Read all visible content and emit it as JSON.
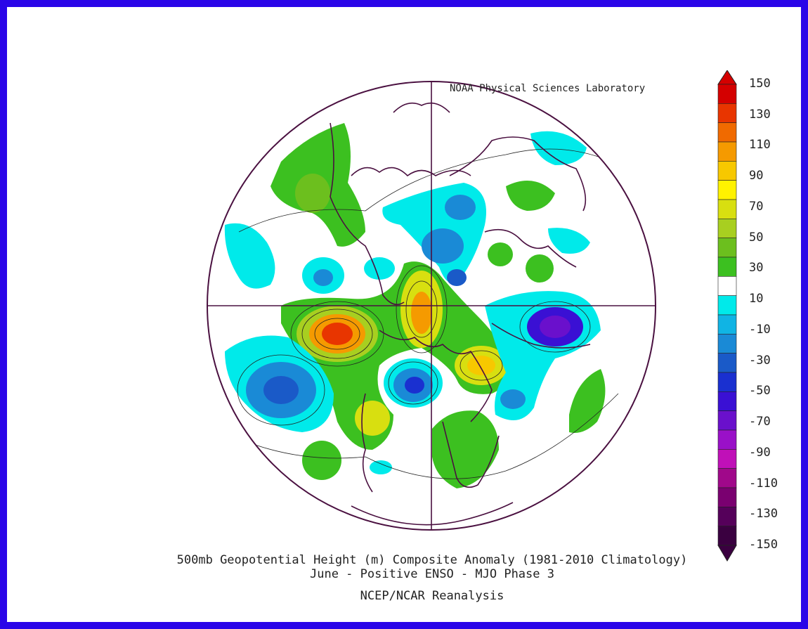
{
  "credit": "NOAA Physical Sciences Laboratory",
  "caption": {
    "line1": "500mb Geopotential Height (m) Composite Anomaly (1981-2010 Climatology)",
    "line2": "June - Positive ENSO - MJO Phase 3",
    "line3": "NCEP/NCAR Reanalysis"
  },
  "colorbar": {
    "labels": [
      "150",
      "130",
      "110",
      "90",
      "70",
      "50",
      "30",
      "10",
      "-10",
      "-30",
      "-50",
      "-70",
      "-90",
      "-110",
      "-130",
      "-150"
    ],
    "colors": [
      "#d40000",
      "#e83500",
      "#f06a00",
      "#f59a00",
      "#f7c800",
      "#fff200",
      "#d8df10",
      "#a8cf20",
      "#6cbf1e",
      "#3cc020",
      "#ffffff",
      "#00eaea",
      "#10b4e4",
      "#1a8ad6",
      "#1a5ac8",
      "#1a30d0",
      "#3a10d4",
      "#6a10cc",
      "#9a10c8",
      "#c010b8",
      "#a0088a",
      "#7a0070",
      "#55005a",
      "#3a0040"
    ]
  },
  "colors": {
    "border": "#2a05e8",
    "coast": "#4a1040"
  }
}
